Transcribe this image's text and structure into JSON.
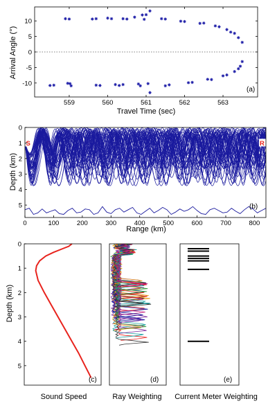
{
  "chart_data": [
    {
      "id": "a",
      "type": "scatter",
      "panel_label": "(a)",
      "xlabel": "Travel Time (sec)",
      "ylabel": "Arrival Angle (°)",
      "xlim": [
        558.1,
        563.9
      ],
      "ylim": [
        -14.5,
        14.5
      ],
      "xticks": [
        559,
        560,
        561,
        562,
        563
      ],
      "yticks": [
        10,
        5,
        0,
        -5,
        -10
      ],
      "marker": "asterisk",
      "color": "#1f1fa8",
      "reference_line": {
        "y": 0,
        "style": "dotted"
      },
      "points": [
        [
          558.5,
          -10.8
        ],
        [
          558.6,
          -10.7
        ],
        [
          558.9,
          10.7
        ],
        [
          559.0,
          10.6
        ],
        [
          558.96,
          -10.1
        ],
        [
          559.02,
          -10.2
        ],
        [
          559.05,
          -10.9
        ],
        [
          559.6,
          10.6
        ],
        [
          559.7,
          10.7
        ],
        [
          559.7,
          -10.7
        ],
        [
          559.8,
          -10.8
        ],
        [
          560.0,
          10.9
        ],
        [
          560.1,
          10.7
        ],
        [
          560.2,
          -10.5
        ],
        [
          560.3,
          -10.8
        ],
        [
          560.4,
          -10.5
        ],
        [
          560.4,
          10.7
        ],
        [
          560.5,
          10.6
        ],
        [
          560.7,
          11.2
        ],
        [
          560.85,
          -10.9
        ],
        [
          560.8,
          -10.3
        ],
        [
          560.9,
          11.9
        ],
        [
          560.95,
          10.5
        ],
        [
          561.0,
          12.0
        ],
        [
          561.1,
          13.2
        ],
        [
          561.1,
          -13.1
        ],
        [
          561.05,
          -10.2
        ],
        [
          561.4,
          10.7
        ],
        [
          561.5,
          10.6
        ],
        [
          561.5,
          -10.9
        ],
        [
          561.6,
          -10.6
        ],
        [
          561.9,
          9.9
        ],
        [
          562.0,
          9.8
        ],
        [
          562.1,
          -9.9
        ],
        [
          562.2,
          -9.8
        ],
        [
          562.4,
          9.2
        ],
        [
          562.5,
          9.3
        ],
        [
          562.6,
          -8.8
        ],
        [
          562.7,
          -8.9
        ],
        [
          562.8,
          8.4
        ],
        [
          562.9,
          8.1
        ],
        [
          563.0,
          -7.7
        ],
        [
          563.1,
          -7.4
        ],
        [
          563.1,
          7.2
        ],
        [
          563.2,
          6.4
        ],
        [
          563.3,
          -6.3
        ],
        [
          563.4,
          -5.4
        ],
        [
          563.3,
          6.0
        ],
        [
          563.4,
          4.6
        ],
        [
          563.45,
          -4.6
        ],
        [
          563.5,
          3.1
        ],
        [
          563.5,
          -3.1
        ]
      ]
    },
    {
      "id": "b",
      "type": "line",
      "panel_label": "(b)",
      "xlabel": "Range (km)",
      "ylabel": "Depth (km)",
      "xlim": [
        0,
        840
      ],
      "ylim": [
        0,
        5.8
      ],
      "y_inverted": true,
      "xticks": [
        0,
        100,
        200,
        300,
        400,
        500,
        600,
        700,
        800
      ],
      "yticks": [
        0,
        1,
        2,
        3,
        4,
        5
      ],
      "color": "#1a1a9e",
      "source_marker": {
        "label": "S",
        "range": 0,
        "depth": 1.0
      },
      "receiver_marker": {
        "label": "R",
        "range": 840,
        "depth": 1.0
      },
      "ray_depth_span": [
        0,
        3.9
      ],
      "ray_count": 52,
      "bathymetry": [
        [
          0,
          5.3
        ],
        [
          15,
          5.2
        ],
        [
          30,
          5.6
        ],
        [
          45,
          5.5
        ],
        [
          60,
          5.25
        ],
        [
          75,
          5.5
        ],
        [
          90,
          5.4
        ],
        [
          105,
          5.3
        ],
        [
          120,
          5.55
        ],
        [
          135,
          5.6
        ],
        [
          150,
          5.35
        ],
        [
          165,
          5.2
        ],
        [
          180,
          5.5
        ],
        [
          195,
          5.45
        ],
        [
          210,
          5.25
        ],
        [
          225,
          5.3
        ],
        [
          240,
          5.6
        ],
        [
          255,
          5.5
        ],
        [
          270,
          5.1
        ],
        [
          285,
          5.45
        ],
        [
          300,
          5.55
        ],
        [
          315,
          5.3
        ],
        [
          330,
          5.2
        ],
        [
          345,
          5.45
        ],
        [
          360,
          5.3
        ],
        [
          375,
          5.15
        ],
        [
          390,
          5.5
        ],
        [
          405,
          5.6
        ],
        [
          420,
          5.4
        ],
        [
          435,
          5.2
        ],
        [
          450,
          5.5
        ],
        [
          465,
          5.35
        ],
        [
          480,
          5.15
        ],
        [
          495,
          5.3
        ],
        [
          510,
          5.6
        ],
        [
          525,
          5.45
        ],
        [
          540,
          5.25
        ],
        [
          555,
          5.4
        ],
        [
          570,
          5.3
        ],
        [
          585,
          5.1
        ],
        [
          600,
          5.35
        ],
        [
          615,
          5.55
        ],
        [
          630,
          5.6
        ],
        [
          645,
          5.3
        ],
        [
          660,
          5.2
        ],
        [
          675,
          5.35
        ],
        [
          690,
          5.5
        ],
        [
          705,
          5.45
        ],
        [
          720,
          5.2
        ],
        [
          735,
          5.4
        ],
        [
          750,
          5.55
        ],
        [
          765,
          5.3
        ],
        [
          780,
          5.1
        ],
        [
          795,
          5.25
        ],
        [
          810,
          5.5
        ],
        [
          825,
          5.35
        ],
        [
          840,
          5.2
        ]
      ]
    },
    {
      "id": "c",
      "type": "line",
      "panel_label": "(c)",
      "xlabel": "Sound Speed",
      "ylabel": "Depth (km)",
      "ylim": [
        0,
        5.8
      ],
      "y_inverted": true,
      "yticks": [
        0,
        1,
        2,
        3,
        4,
        5
      ],
      "color": "#e8231d",
      "profile": [
        [
          0.0,
          0.62
        ],
        [
          0.1,
          0.58
        ],
        [
          0.2,
          0.5
        ],
        [
          0.35,
          0.38
        ],
        [
          0.5,
          0.28
        ],
        [
          0.7,
          0.2
        ],
        [
          0.9,
          0.16
        ],
        [
          1.1,
          0.15
        ],
        [
          1.5,
          0.18
        ],
        [
          2.0,
          0.26
        ],
        [
          2.5,
          0.35
        ],
        [
          3.0,
          0.44
        ],
        [
          3.5,
          0.53
        ],
        [
          4.0,
          0.62
        ],
        [
          4.5,
          0.71
        ],
        [
          5.0,
          0.79
        ],
        [
          5.5,
          0.87
        ]
      ]
    },
    {
      "id": "d",
      "type": "line",
      "panel_label": "(d)",
      "xlabel": "Ray Weighting",
      "ylim": [
        0,
        5.8
      ],
      "y_inverted": true,
      "depth_span": [
        0,
        4.5
      ],
      "series_colors": [
        "#e8231d",
        "#1a1a9e",
        "#2e9b3a",
        "#7b2aa0",
        "#e89b1d",
        "#18a0a0",
        "#333333",
        "#c2187a"
      ]
    },
    {
      "id": "e",
      "type": "bar",
      "panel_label": "(e)",
      "xlabel": "Current Meter Weighting",
      "ylim": [
        0,
        5.8
      ],
      "y_inverted": true,
      "meter_depths": [
        0.2,
        0.3,
        0.5,
        0.6,
        0.7,
        1.05,
        4.0
      ],
      "color": "#000000"
    }
  ]
}
